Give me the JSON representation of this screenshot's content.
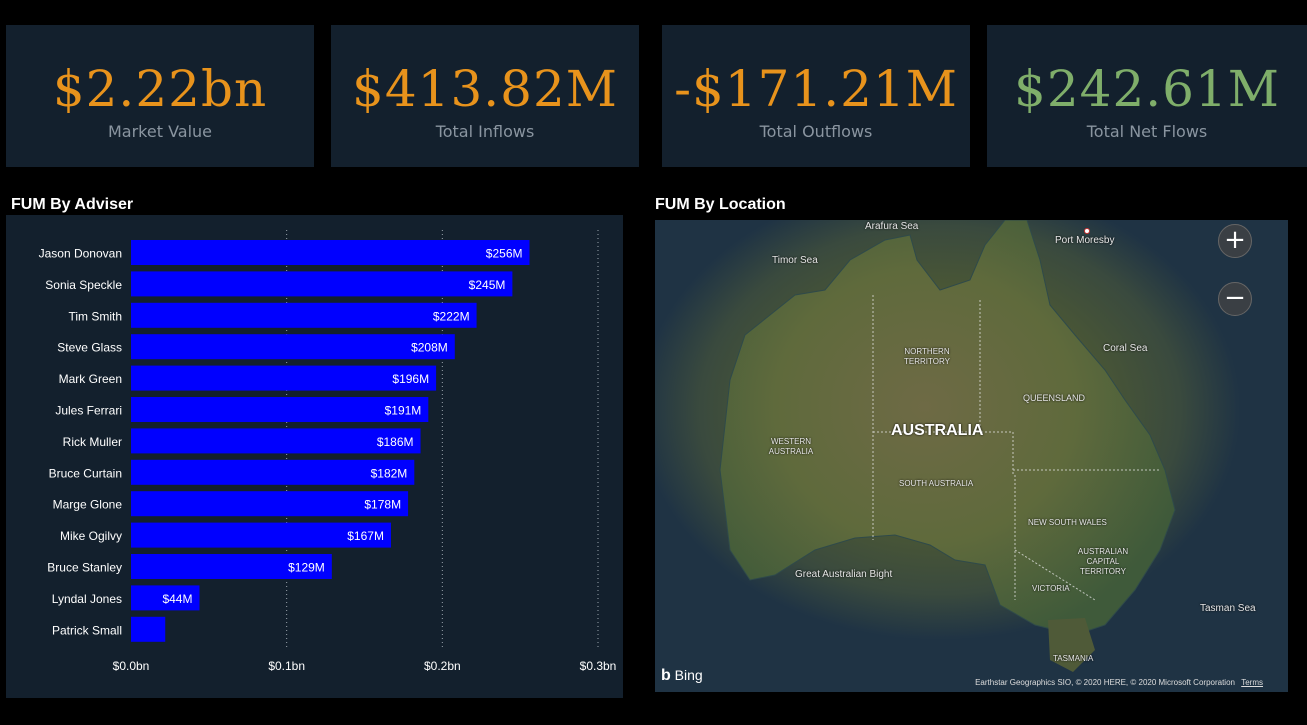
{
  "kpis": [
    {
      "value": "$2.22bn",
      "label": "Market Value",
      "color": "#e8931c"
    },
    {
      "value": "$413.82M",
      "label": "Total Inflows",
      "color": "#e8931c"
    },
    {
      "value": "-$171.21M",
      "label": "Total Outflows",
      "color": "#e8931c"
    },
    {
      "value": "$242.61M",
      "label": "Total Net Flows",
      "color": "#7fae6a"
    }
  ],
  "adviser_chart": {
    "section_title": "FUM By Adviser",
    "bar_color": "#0000ff"
  },
  "chart_data": {
    "type": "bar",
    "orientation": "horizontal",
    "categories": [
      "Jason Donovan",
      "Sonia Speckle",
      "Tim Smith",
      "Steve Glass",
      "Mark Green",
      "Jules Ferrari",
      "Rick Muller",
      "Bruce Curtain",
      "Marge Glone",
      "Mike Ogilvy",
      "Bruce Stanley",
      "Lyndal Jones",
      "Patrick Small"
    ],
    "values": [
      256,
      245,
      222,
      208,
      196,
      191,
      186,
      182,
      178,
      167,
      129,
      44,
      22
    ],
    "data_labels": [
      "$256M",
      "$245M",
      "$222M",
      "$208M",
      "$196M",
      "$191M",
      "$186M",
      "$182M",
      "$178M",
      "$167M",
      "$129M",
      "$44M",
      ""
    ],
    "xlim": [
      0,
      300
    ],
    "x_ticks": [
      0,
      100,
      200,
      300
    ],
    "x_tick_labels": [
      "$0.0bn",
      "$0.1bn",
      "$0.2bn",
      "$0.3bn"
    ],
    "grid": true
  },
  "map": {
    "section_title": "FUM By Location",
    "labels": {
      "arafura": "Arafura Sea",
      "port_moresby": "Port Moresby",
      "timor": "Timor Sea",
      "coral": "Coral Sea",
      "nt": "NORTHERN TERRITORY",
      "qld": "QUEENSLAND",
      "australia": "AUSTRALIA",
      "wa": "WESTERN AUSTRALIA",
      "sa": "SOUTH AUSTRALIA",
      "nsw": "NEW SOUTH WALES",
      "act": "AUSTRALIAN CAPITAL TERRITORY",
      "bight": "Great Australian Bight",
      "vic": "VICTORIA",
      "tasman": "Tasman Sea",
      "tas": "TASMANIA"
    },
    "zoom_in": "+",
    "zoom_out": "−",
    "bing": "Bing",
    "attribution": "Earthstar Geographics SIO, © 2020 HERE, © 2020 Microsoft Corporation",
    "terms": "Terms"
  }
}
